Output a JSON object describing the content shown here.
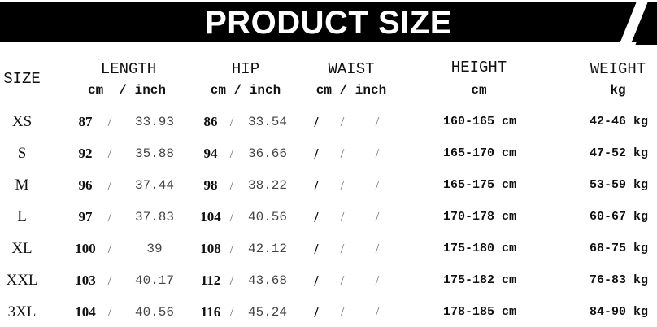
{
  "title": "PRODUCT SIZE",
  "headers": {
    "size": "SIZE",
    "length": "LENGTH",
    "length_unit": "cm  / inch",
    "hip": "HIP",
    "hip_unit": "cm / inch",
    "waist": "WAIST",
    "waist_unit": "cm / inch",
    "height": "HEIGHT",
    "height_unit": "cm",
    "weight": "WEIGHT",
    "weight_unit": "kg"
  },
  "rows": [
    {
      "size": "XS",
      "length_cm": "87",
      "length_in": "33.93",
      "hip_cm": "86",
      "hip_in": "33.54",
      "waist": [
        "/",
        "/",
        "/"
      ],
      "height": "160-165 cm",
      "weight": "42-46 kg"
    },
    {
      "size": "S",
      "length_cm": "92",
      "length_in": "35.88",
      "hip_cm": "94",
      "hip_in": "36.66",
      "waist": [
        "/",
        "/",
        "/"
      ],
      "height": "165-170 cm",
      "weight": "47-52 kg"
    },
    {
      "size": "M",
      "length_cm": "96",
      "length_in": "37.44",
      "hip_cm": "98",
      "hip_in": "38.22",
      "waist": [
        "/",
        "/",
        "/"
      ],
      "height": "165-175 cm",
      "weight": "53-59 kg"
    },
    {
      "size": "L",
      "length_cm": "97",
      "length_in": "37.83",
      "hip_cm": "104",
      "hip_in": "40.56",
      "waist": [
        "/",
        "/",
        "/"
      ],
      "height": "170-178 cm",
      "weight": "60-67 kg"
    },
    {
      "size": "XL",
      "length_cm": "100",
      "length_in": "39",
      "hip_cm": "108",
      "hip_in": "42.12",
      "waist": [
        "/",
        "/",
        "/"
      ],
      "height": "175-180 cm",
      "weight": "68-75 kg"
    },
    {
      "size": "XXL",
      "length_cm": "103",
      "length_in": "40.17",
      "hip_cm": "112",
      "hip_in": "43.68",
      "waist": [
        "/",
        "/",
        "/"
      ],
      "height": "175-182 cm",
      "weight": "76-83 kg"
    },
    {
      "size": "3XL",
      "length_cm": "104",
      "length_in": "40.56",
      "hip_cm": "116",
      "hip_in": "45.24",
      "waist": [
        "/",
        "/",
        "/"
      ],
      "height": "178-185 cm",
      "weight": "84-90 kg"
    }
  ],
  "separator": "/"
}
